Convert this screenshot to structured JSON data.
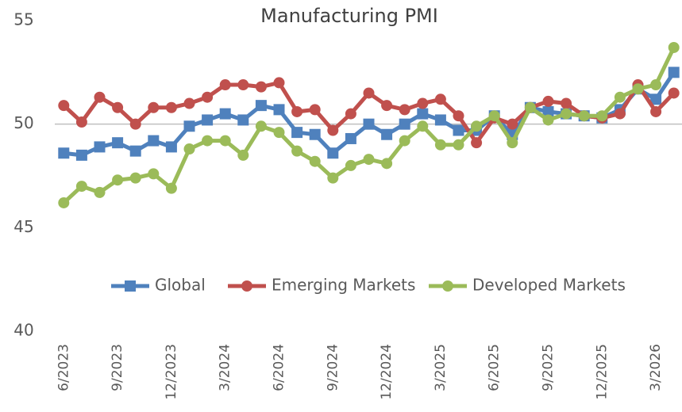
{
  "chart_data": {
    "type": "line",
    "title": "Manufacturing PMI",
    "categories": [
      "6/2023",
      null,
      null,
      "9/2023",
      null,
      null,
      "12/2023",
      null,
      null,
      "3/2024",
      null,
      null,
      "6/2024",
      null,
      null,
      "9/2024",
      null,
      null,
      "12/2024",
      null,
      null,
      "3/2025",
      null,
      null,
      "6/2025",
      null,
      null,
      "9/2025",
      null,
      null,
      "12/2025",
      null,
      null,
      "3/2026",
      null
    ],
    "series": [
      {
        "name": "Global",
        "color": "#4f81bd",
        "marker": "square",
        "values": [
          48.6,
          48.5,
          48.9,
          49.1,
          48.7,
          49.2,
          48.9,
          49.9,
          50.2,
          50.5,
          50.2,
          50.9,
          50.7,
          49.6,
          49.5,
          48.6,
          49.3,
          50.0,
          49.5,
          50.0,
          50.5,
          50.2,
          49.7,
          49.7,
          50.4,
          49.5,
          50.8,
          50.6,
          50.5,
          50.4,
          50.3,
          50.7,
          51.7,
          51.2,
          52.5
        ]
      },
      {
        "name": "Emerging Markets",
        "color": "#c0504d",
        "marker": "circle",
        "values": [
          50.9,
          50.1,
          51.3,
          50.8,
          50.0,
          50.8,
          50.8,
          51.0,
          51.3,
          51.9,
          51.9,
          51.8,
          52.0,
          50.6,
          50.7,
          49.7,
          50.5,
          51.5,
          50.9,
          50.7,
          51.0,
          51.2,
          50.4,
          49.1,
          50.3,
          50.0,
          50.8,
          51.1,
          51.0,
          50.4,
          50.3,
          50.5,
          51.9,
          50.6,
          51.5
        ]
      },
      {
        "name": "Developed Markets",
        "color": "#9bbb59",
        "marker": "circle",
        "values": [
          46.2,
          47.0,
          46.7,
          47.3,
          47.4,
          47.6,
          46.9,
          48.8,
          49.2,
          49.2,
          48.5,
          49.9,
          49.6,
          48.7,
          48.2,
          47.4,
          48.0,
          48.3,
          48.1,
          49.2,
          49.9,
          49.0,
          49.0,
          49.9,
          50.4,
          49.1,
          50.8,
          50.2,
          50.5,
          50.4,
          50.4,
          51.3,
          51.7,
          51.9,
          53.7
        ]
      }
    ],
    "ylim": [
      40,
      55
    ],
    "yticks": [
      40,
      45,
      50,
      55
    ],
    "grid": false,
    "hline": 50,
    "legend": "bottom"
  }
}
